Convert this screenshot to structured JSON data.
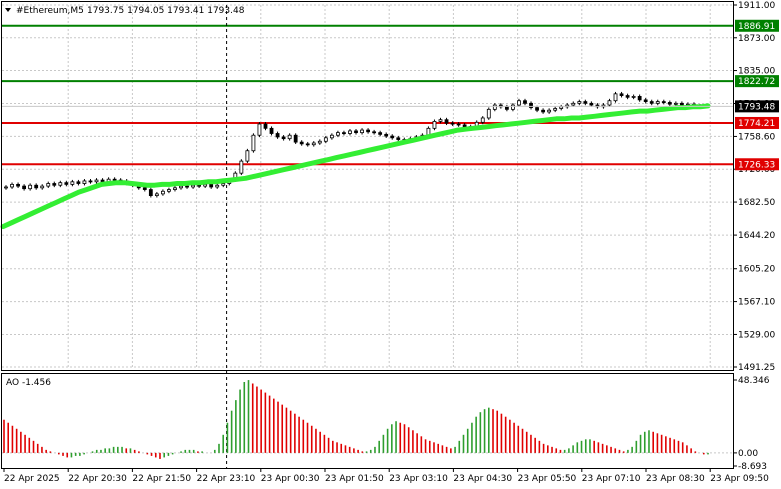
{
  "header": {
    "symbol": "#Ethereum,M5",
    "ohlc": "1793.75 1794.05 1793.41 1793.48"
  },
  "ao": {
    "title": "AO -1.456"
  },
  "colors": {
    "background": "#ffffff",
    "frame": "#000000",
    "grid": "#c8c8c8",
    "candle": "#000000",
    "ma": "#33ee33",
    "resistance_line": "#008000",
    "support_line": "#e00000",
    "current_price_tag": "#000000",
    "ao_up": "#2e9e2e",
    "ao_down": "#e00000"
  },
  "chart_data": [
    {
      "type": "candlestick",
      "title": "#Ethereum,M5",
      "y_ticks": [
        "1911.00",
        "1873.00",
        "1835.00",
        "1796.80",
        "1758.60",
        "1720.60",
        "1682.50",
        "1644.20",
        "1605.20",
        "1567.10",
        "1529.00",
        "1491.25"
      ],
      "ylim": [
        1491.25,
        1911.0
      ],
      "x_ticks": [
        "22 Apr 2025",
        "22 Apr 20:30",
        "22 Apr 21:50",
        "22 Apr 23:10",
        "23 Apr 00:30",
        "23 Apr 01:50",
        "23 Apr 03:10",
        "23 Apr 04:30",
        "23 Apr 05:50",
        "23 Apr 07:10",
        "23 Apr 08:30",
        "23 Apr 09:50"
      ],
      "grid": true,
      "current_price": "1793.48",
      "horizontal_levels": [
        {
          "label": "1886.91",
          "value": 1886.91,
          "color": "#008000"
        },
        {
          "label": "1822.72",
          "value": 1822.72,
          "color": "#008000"
        },
        {
          "label": "1774.21",
          "value": 1774.21,
          "color": "#e00000"
        },
        {
          "label": "1726.33",
          "value": 1726.33,
          "color": "#e00000"
        }
      ],
      "vertical_marker": "22 Apr 23:10",
      "close_series": [
        1700,
        1703,
        1701,
        1698,
        1702,
        1699,
        1701,
        1704,
        1702,
        1705,
        1703,
        1706,
        1704,
        1707,
        1706,
        1708,
        1706,
        1709,
        1708,
        1707,
        1704,
        1702,
        1699,
        1697,
        1690,
        1692,
        1695,
        1697,
        1699,
        1701,
        1700,
        1702,
        1701,
        1703,
        1700,
        1702,
        1704,
        1708,
        1716,
        1730,
        1742,
        1760,
        1773,
        1768,
        1762,
        1758,
        1756,
        1760,
        1752,
        1750,
        1749,
        1751,
        1753,
        1757,
        1760,
        1763,
        1762,
        1765,
        1763,
        1766,
        1764,
        1763,
        1761,
        1759,
        1757,
        1755,
        1754,
        1756,
        1758,
        1760,
        1768,
        1776,
        1778,
        1774,
        1773,
        1772,
        1768,
        1770,
        1775,
        1780,
        1790,
        1795,
        1793,
        1790,
        1795,
        1800,
        1797,
        1792,
        1789,
        1787,
        1789,
        1791,
        1793,
        1795,
        1797,
        1799,
        1797,
        1795,
        1793,
        1795,
        1800,
        1808,
        1806,
        1804,
        1805,
        1801,
        1799,
        1797,
        1799,
        1798,
        1796,
        1797,
        1795,
        1796,
        1794,
        1793.48
      ],
      "ma_series": [
        1654,
        1658,
        1662,
        1666,
        1670,
        1674,
        1678,
        1682,
        1686,
        1690,
        1694,
        1697,
        1700,
        1703,
        1704,
        1705,
        1705,
        1704,
        1703,
        1702,
        1702,
        1703,
        1703,
        1704,
        1704,
        1705,
        1705,
        1706,
        1706,
        1707,
        1708,
        1709,
        1710,
        1712,
        1714,
        1716,
        1718,
        1720,
        1722,
        1724,
        1726,
        1728,
        1730,
        1732,
        1734,
        1736,
        1738,
        1740,
        1742,
        1744,
        1746,
        1748,
        1750,
        1752,
        1754,
        1756,
        1758,
        1760,
        1762,
        1764,
        1766,
        1767,
        1768,
        1769,
        1770,
        1771,
        1772,
        1773,
        1774,
        1775,
        1776,
        1777,
        1778,
        1779,
        1779,
        1780,
        1780,
        1781,
        1782,
        1783,
        1784,
        1785,
        1786,
        1787,
        1788,
        1788,
        1789,
        1790,
        1791,
        1792,
        1792,
        1793,
        1793,
        1794
      ],
      "ma_label": ""
    },
    {
      "type": "bar",
      "title": "AO -1.456",
      "y_ticks": [
        "48.346",
        "0.00",
        "-8.693"
      ],
      "ylim": [
        -8.693,
        48.346
      ],
      "values": [
        22,
        20,
        18,
        16,
        14,
        12,
        10,
        8,
        6,
        4,
        2,
        1,
        0,
        -1,
        -2,
        -3,
        -3,
        -2,
        -2,
        -1,
        0,
        1,
        2,
        2,
        3,
        3,
        4,
        4,
        4,
        3,
        3,
        2,
        1,
        0,
        -1,
        -2,
        -3,
        -4,
        -3,
        -2,
        -1,
        0,
        1,
        2,
        2,
        2,
        1,
        1,
        0,
        0,
        2,
        6,
        12,
        20,
        28,
        35,
        42,
        47,
        48.3,
        46,
        44,
        42,
        40,
        38,
        36,
        34,
        32,
        30,
        28,
        26,
        24,
        22,
        20,
        18,
        16,
        14,
        12,
        10,
        8,
        7,
        6,
        5,
        4,
        3,
        2,
        1,
        1,
        2,
        4,
        8,
        12,
        16,
        19,
        21,
        20,
        19,
        17,
        15,
        13,
        11,
        9,
        8,
        7,
        6,
        5,
        4,
        3,
        4,
        8,
        12,
        16,
        20,
        24,
        27,
        29,
        30,
        29,
        28,
        26,
        24,
        22,
        20,
        18,
        16,
        14,
        12,
        10,
        8,
        6,
        5,
        4,
        3,
        2,
        2,
        3,
        5,
        7,
        8,
        9,
        9,
        8,
        7,
        6,
        5,
        4,
        3,
        2,
        1,
        2,
        4,
        8,
        12,
        14,
        15,
        14,
        13,
        12,
        11,
        10,
        9,
        8,
        7,
        5,
        3,
        1,
        0,
        -1,
        -1
      ]
    }
  ]
}
